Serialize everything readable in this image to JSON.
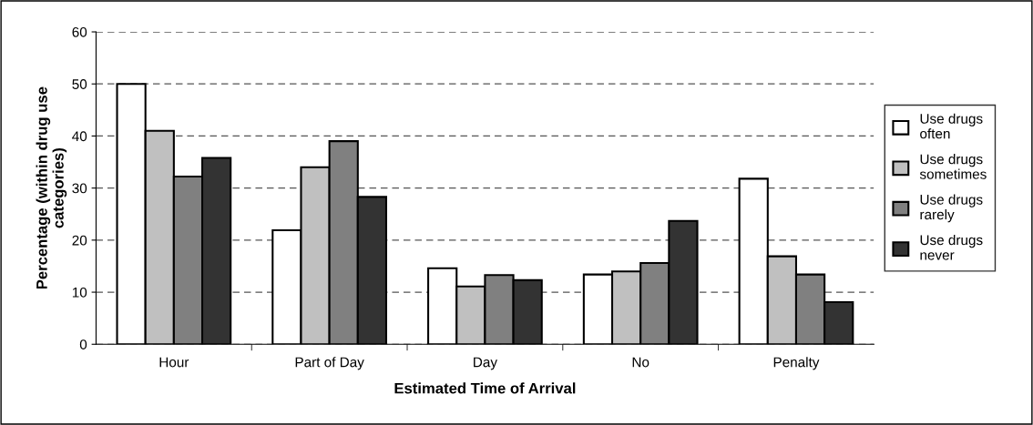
{
  "chart_data": {
    "type": "bar",
    "xlabel": "Estimated Time of Arrival",
    "ylabel": "Percentage (within drug use\ncategories)",
    "categories": [
      "Hour",
      "Part of Day",
      "Day",
      "No",
      "Penalty"
    ],
    "series": [
      {
        "name": "Use drugs\noften",
        "color": "#ffffff",
        "values": [
          50,
          21.9,
          14.6,
          13.4,
          31.8
        ]
      },
      {
        "name": "Use drugs\nsometimes",
        "color": "#c0c0c0",
        "values": [
          41,
          34,
          11.1,
          14,
          16.9
        ]
      },
      {
        "name": "Use drugs\nrarely",
        "color": "#808080",
        "values": [
          32.2,
          39,
          13.3,
          15.6,
          13.4
        ]
      },
      {
        "name": "Use drugs\nnever",
        "color": "#333333",
        "values": [
          35.8,
          28.3,
          12.3,
          23.7,
          8.1
        ]
      }
    ],
    "ylim": [
      0,
      60
    ],
    "yticks": [
      0,
      10,
      20,
      30,
      40,
      50,
      60
    ],
    "grid": "y",
    "legend": "right"
  }
}
